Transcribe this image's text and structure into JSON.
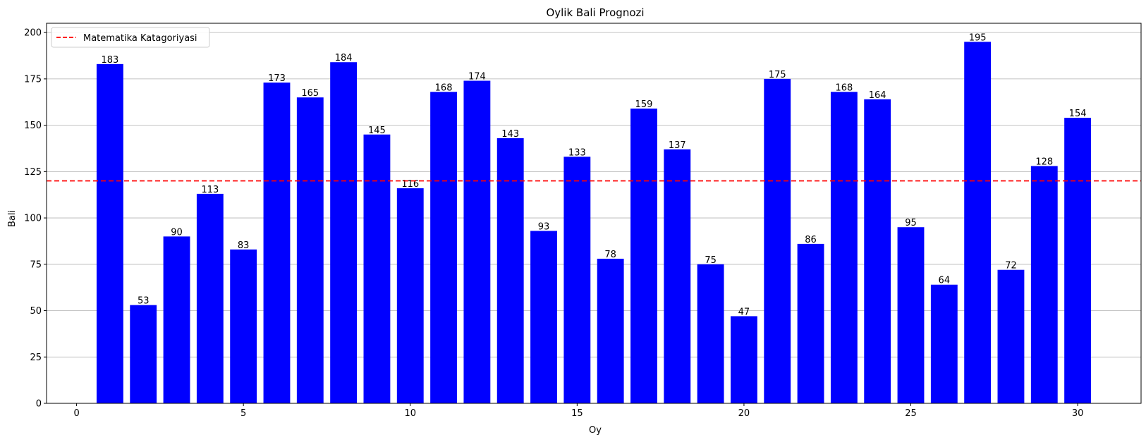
{
  "chart_data": {
    "type": "bar",
    "title": "Oylik Bali Prognozi",
    "xlabel": "Oy",
    "ylabel": "Bali",
    "x": [
      1,
      2,
      3,
      4,
      5,
      6,
      7,
      8,
      9,
      10,
      11,
      12,
      13,
      14,
      15,
      16,
      17,
      18,
      19,
      20,
      21,
      22,
      23,
      24,
      25,
      26,
      27,
      28,
      29,
      30
    ],
    "values": [
      183,
      53,
      90,
      113,
      83,
      173,
      165,
      184,
      145,
      116,
      168,
      174,
      143,
      93,
      133,
      78,
      159,
      137,
      75,
      47,
      175,
      86,
      168,
      164,
      95,
      64,
      195,
      72,
      128,
      154
    ],
    "xlim": [
      -0.9,
      31.9
    ],
    "ylim": [
      0,
      205
    ],
    "xticks": [
      0,
      5,
      10,
      15,
      20,
      25,
      30
    ],
    "yticks": [
      0,
      25,
      50,
      75,
      100,
      125,
      150,
      175,
      200
    ],
    "bar_color": "#0000ff",
    "grid": "y-axis",
    "reference_line": {
      "label": "Matematika Katagoriyasi",
      "value": 120,
      "color": "#ff0000",
      "style": "dashed"
    },
    "legend": {
      "placement": "top-left",
      "entries": [
        "Matematika Katagoriyasi"
      ]
    }
  }
}
